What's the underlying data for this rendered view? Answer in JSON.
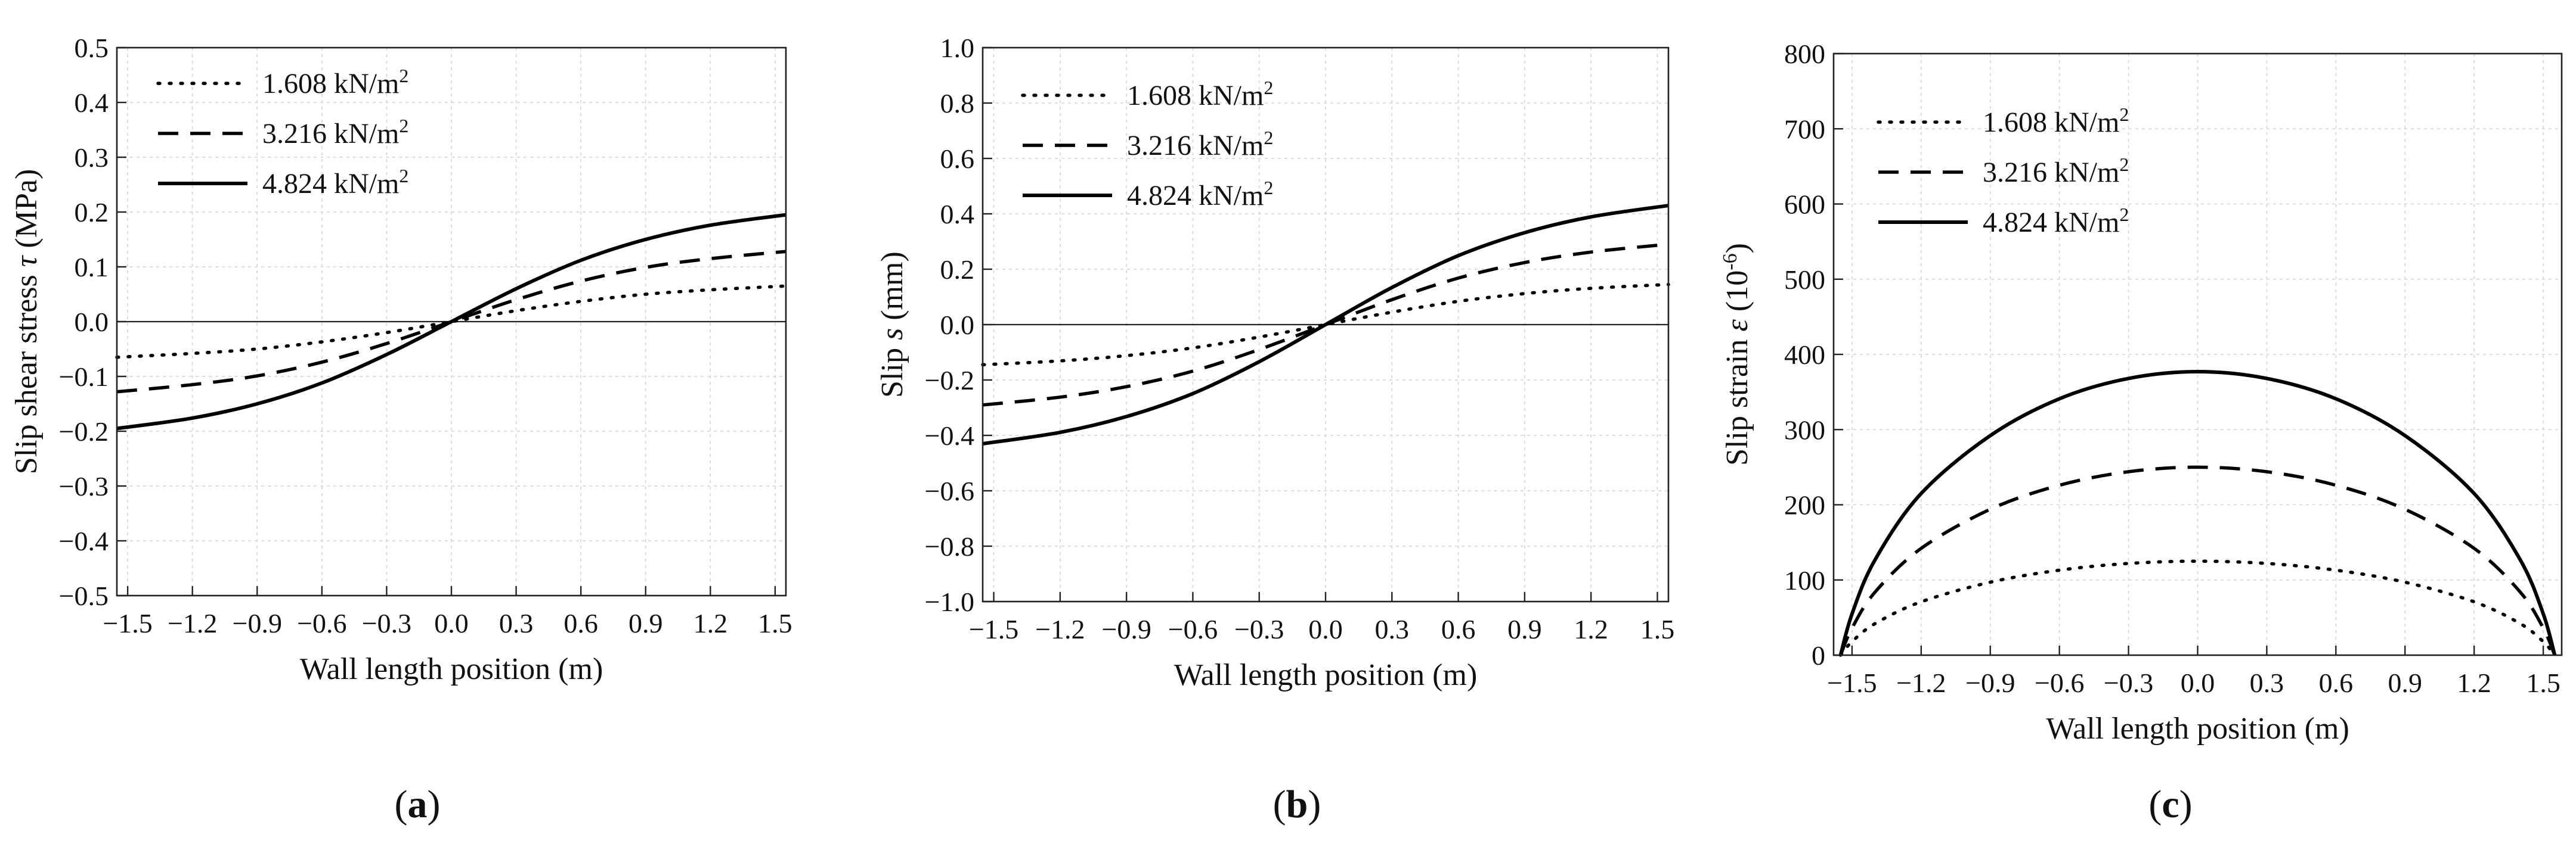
{
  "figure": {
    "panel_labels": [
      "a",
      "b",
      "c"
    ]
  },
  "chart_data": [
    {
      "type": "line",
      "panel": "a",
      "xlabel": "Wall length position (m)",
      "ylabel_parts": [
        "Slip shear stress ",
        "τ",
        " (MPa)"
      ],
      "xlim": [
        -1.55,
        1.55
      ],
      "ylim": [
        -0.5,
        0.5
      ],
      "xticks": [
        "−1.5",
        "−1.2",
        "−0.9",
        "−0.6",
        "−0.3",
        "0.0",
        "0.3",
        "0.6",
        "0.9",
        "1.2",
        "1.5"
      ],
      "xtick_values": [
        -1.5,
        -1.2,
        -0.9,
        -0.6,
        -0.3,
        0.0,
        0.3,
        0.6,
        0.9,
        1.2,
        1.5
      ],
      "yticks": [
        "−0.5",
        "−0.4",
        "−0.3",
        "−0.2",
        "−0.1",
        "0.0",
        "0.1",
        "0.2",
        "0.3",
        "0.4",
        "0.5"
      ],
      "ytick_values": [
        -0.5,
        -0.4,
        -0.3,
        -0.2,
        -0.1,
        0.0,
        0.1,
        0.2,
        0.3,
        0.4,
        0.5
      ],
      "grid": true,
      "zero_line": true,
      "legend_position": "top-left",
      "x": [
        -1.55,
        -1.2,
        -0.9,
        -0.6,
        -0.3,
        0.0,
        0.3,
        0.6,
        0.9,
        1.2,
        1.55
      ],
      "series": [
        {
          "name": "1.608 kN/m",
          "sup": "2",
          "style": "dotted",
          "values": [
            -0.065,
            -0.058,
            -0.05,
            -0.037,
            -0.02,
            0.0,
            0.02,
            0.037,
            0.05,
            0.058,
            0.065
          ]
        },
        {
          "name": "3.216 kN/m",
          "sup": "2",
          "style": "dashed",
          "values": [
            -0.128,
            -0.115,
            -0.099,
            -0.074,
            -0.04,
            0.0,
            0.04,
            0.074,
            0.099,
            0.115,
            0.128
          ]
        },
        {
          "name": "4.824 kN/m",
          "sup": "2",
          "style": "solid",
          "values": [
            -0.195,
            -0.176,
            -0.15,
            -0.112,
            -0.06,
            0.0,
            0.06,
            0.112,
            0.15,
            0.176,
            0.195
          ]
        }
      ]
    },
    {
      "type": "line",
      "panel": "b",
      "xlabel": "Wall length position (m)",
      "ylabel_parts": [
        "Slip ",
        "s",
        " (mm)"
      ],
      "xlim": [
        -1.55,
        1.55
      ],
      "ylim": [
        -1.0,
        1.0
      ],
      "xticks": [
        "−1.5",
        "−1.2",
        "−0.9",
        "−0.6",
        "−0.3",
        "0.0",
        "0.3",
        "0.6",
        "0.9",
        "1.2",
        "1.5"
      ],
      "xtick_values": [
        -1.5,
        -1.2,
        -0.9,
        -0.6,
        -0.3,
        0.0,
        0.3,
        0.6,
        0.9,
        1.2,
        1.5
      ],
      "yticks": [
        "−1.0",
        "−0.8",
        "−0.6",
        "−0.4",
        "−0.2",
        "0.0",
        "0.2",
        "0.4",
        "0.6",
        "0.8",
        "1.0"
      ],
      "ytick_values": [
        -1.0,
        -0.8,
        -0.6,
        -0.4,
        -0.2,
        0.0,
        0.2,
        0.4,
        0.6,
        0.8,
        1.0
      ],
      "grid": true,
      "zero_line": true,
      "legend_position": "top-left",
      "x": [
        -1.55,
        -1.2,
        -0.9,
        -0.6,
        -0.3,
        0.0,
        0.3,
        0.6,
        0.9,
        1.2,
        1.55
      ],
      "series": [
        {
          "name": "1.608 kN/m",
          "sup": "2",
          "style": "dotted",
          "values": [
            -0.145,
            -0.131,
            -0.112,
            -0.084,
            -0.045,
            0.0,
            0.045,
            0.084,
            0.112,
            0.131,
            0.145
          ]
        },
        {
          "name": "3.216 kN/m",
          "sup": "2",
          "style": "dashed",
          "values": [
            -0.29,
            -0.262,
            -0.224,
            -0.168,
            -0.09,
            0.0,
            0.09,
            0.168,
            0.224,
            0.262,
            0.29
          ]
        },
        {
          "name": "4.824 kN/m",
          "sup": "2",
          "style": "solid",
          "values": [
            -0.43,
            -0.389,
            -0.332,
            -0.249,
            -0.134,
            0.0,
            0.134,
            0.249,
            0.332,
            0.389,
            0.43
          ]
        }
      ]
    },
    {
      "type": "line",
      "panel": "c",
      "xlabel": "Wall length position (m)",
      "ylabel_parts": [
        "Slip strain ",
        "ε",
        " (10",
        "-6",
        ")"
      ],
      "xlim": [
        -1.58,
        1.58
      ],
      "ylim": [
        0,
        800
      ],
      "xticks": [
        "−1.5",
        "−1.2",
        "−0.9",
        "−0.6",
        "−0.3",
        "0.0",
        "0.3",
        "0.6",
        "0.9",
        "1.2",
        "1.5"
      ],
      "xtick_values": [
        -1.5,
        -1.2,
        -0.9,
        -0.6,
        -0.3,
        0.0,
        0.3,
        0.6,
        0.9,
        1.2,
        1.5
      ],
      "yticks": [
        "0",
        "100",
        "200",
        "300",
        "400",
        "500",
        "600",
        "700",
        "800"
      ],
      "ytick_values": [
        0,
        100,
        200,
        300,
        400,
        500,
        600,
        700,
        800
      ],
      "grid": true,
      "zero_line": false,
      "legend_position": "top-left",
      "x": [
        -1.55,
        -1.5,
        -1.4,
        -1.2,
        -0.9,
        -0.6,
        -0.3,
        0.0,
        0.3,
        0.6,
        0.9,
        1.2,
        1.4,
        1.5,
        1.55
      ],
      "series": [
        {
          "name": "1.608 kN/m",
          "sup": "2",
          "style": "dotted",
          "values": [
            0,
            18,
            42,
            71,
            97,
            113,
            122,
            125,
            122,
            113,
            97,
            71,
            42,
            18,
            0
          ]
        },
        {
          "name": "3.216 kN/m",
          "sup": "2",
          "style": "dashed",
          "values": [
            0,
            36,
            84,
            142,
            194,
            226,
            244,
            250,
            244,
            226,
            194,
            142,
            84,
            36,
            0
          ]
        },
        {
          "name": "4.824 kN/m",
          "sup": "2",
          "style": "solid",
          "values": [
            0,
            55,
            127,
            215,
            292,
            341,
            368,
            377,
            368,
            341,
            292,
            215,
            127,
            55,
            0
          ]
        }
      ]
    }
  ]
}
